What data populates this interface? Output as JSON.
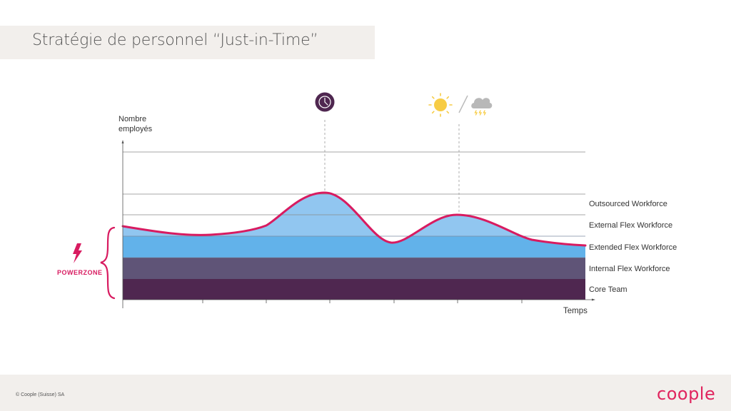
{
  "slide": {
    "title": "Stratégie de personnel “Just-in-Time”"
  },
  "diagram": {
    "y_axis_label_line1": "Nombre",
    "y_axis_label_line2": "employés",
    "x_axis_label": "Temps",
    "powerzone_label": "POWERZONE",
    "layers": [
      {
        "label": "Outsourced Workforce",
        "color": "#ffffff"
      },
      {
        "label": "External Flex Workforce",
        "color": "#91c6f0"
      },
      {
        "label": "Extended Flex Workforce",
        "color": "#62b2ea"
      },
      {
        "label": "Internal Flex Workforce",
        "color": "#5f5477"
      },
      {
        "label": "Core Team",
        "color": "#4f2750"
      }
    ],
    "demand_curve_color": "#d81b60",
    "event_icons": [
      "clock-icon",
      "sun-icon",
      "storm-cloud-icon"
    ]
  },
  "footer": {
    "copyright": "© Coople (Suisse) SA",
    "logo": "coople"
  }
}
